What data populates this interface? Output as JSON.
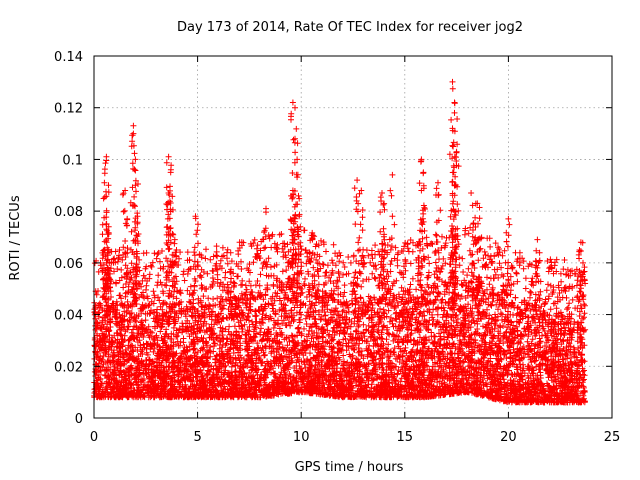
{
  "chart_data": {
    "type": "scatter",
    "title": "Day 173 of 2014, Rate Of TEC Index for receiver jog2",
    "xlabel": "GPS time / hours",
    "ylabel": "ROTI / TECUs",
    "xlim": [
      0,
      25
    ],
    "ylim": [
      0,
      0.14
    ],
    "x_ticks": [
      0,
      5,
      10,
      15,
      20,
      25
    ],
    "y_ticks": [
      0,
      0.02,
      0.04,
      0.06,
      0.08,
      0.1,
      0.12,
      0.14
    ],
    "x_tick_labels": [
      "0",
      "5",
      "10",
      "15",
      "20",
      "25"
    ],
    "y_tick_labels": [
      "0",
      "0.02",
      "0.04",
      "0.06",
      "0.08",
      "0.1",
      "0.12",
      "0.14"
    ],
    "grid": true,
    "marker": "+",
    "color": "#ff0000",
    "series": [
      {
        "name": "ROTI",
        "description": "dense cloud of points from 0 to 23.7 h, bulk 0.008–0.05 TECUs",
        "baseline_band": [
          [
            0,
            0.008,
            0.045
          ],
          [
            5,
            0.008,
            0.045
          ],
          [
            8,
            0.008,
            0.05
          ],
          [
            10,
            0.01,
            0.055
          ],
          [
            12,
            0.008,
            0.045
          ],
          [
            16,
            0.008,
            0.05
          ],
          [
            18,
            0.01,
            0.055
          ],
          [
            20,
            0.006,
            0.045
          ],
          [
            23.7,
            0.006,
            0.04
          ]
        ],
        "peaks": [
          {
            "x": 0.6,
            "y": 0.101
          },
          {
            "x": 0.5,
            "y": 0.091
          },
          {
            "x": 0.7,
            "y": 0.09
          },
          {
            "x": 0.6,
            "y": 0.073
          },
          {
            "x": 0.6,
            "y": 0.06
          },
          {
            "x": 1.5,
            "y": 0.088
          },
          {
            "x": 1.6,
            "y": 0.077
          },
          {
            "x": 1.9,
            "y": 0.113
          },
          {
            "x": 1.9,
            "y": 0.11
          },
          {
            "x": 2.0,
            "y": 0.1
          },
          {
            "x": 2.0,
            "y": 0.09
          },
          {
            "x": 2.1,
            "y": 0.078
          },
          {
            "x": 3.6,
            "y": 0.101
          },
          {
            "x": 3.7,
            "y": 0.095
          },
          {
            "x": 3.6,
            "y": 0.087
          },
          {
            "x": 3.9,
            "y": 0.069
          },
          {
            "x": 4.9,
            "y": 0.078
          },
          {
            "x": 8.3,
            "y": 0.081
          },
          {
            "x": 9.6,
            "y": 0.122
          },
          {
            "x": 9.7,
            "y": 0.12
          },
          {
            "x": 9.7,
            "y": 0.108
          },
          {
            "x": 9.8,
            "y": 0.1
          },
          {
            "x": 9.6,
            "y": 0.088
          },
          {
            "x": 9.9,
            "y": 0.078
          },
          {
            "x": 9.5,
            "y": 0.065
          },
          {
            "x": 12.7,
            "y": 0.092
          },
          {
            "x": 12.9,
            "y": 0.088
          },
          {
            "x": 13.9,
            "y": 0.087
          },
          {
            "x": 14.0,
            "y": 0.071
          },
          {
            "x": 14.4,
            "y": 0.094
          },
          {
            "x": 15.8,
            "y": 0.1
          },
          {
            "x": 15.9,
            "y": 0.095
          },
          {
            "x": 15.8,
            "y": 0.088
          },
          {
            "x": 16.6,
            "y": 0.091
          },
          {
            "x": 17.3,
            "y": 0.13
          },
          {
            "x": 17.4,
            "y": 0.122
          },
          {
            "x": 17.4,
            "y": 0.118
          },
          {
            "x": 17.3,
            "y": 0.112
          },
          {
            "x": 17.5,
            "y": 0.103
          },
          {
            "x": 17.4,
            "y": 0.09
          },
          {
            "x": 18.2,
            "y": 0.087
          },
          {
            "x": 18.5,
            "y": 0.083
          },
          {
            "x": 18.3,
            "y": 0.075
          },
          {
            "x": 18.6,
            "y": 0.065
          },
          {
            "x": 20.0,
            "y": 0.077
          },
          {
            "x": 21.4,
            "y": 0.069
          },
          {
            "x": 23.5,
            "y": 0.068
          },
          {
            "x": 23.6,
            "y": 0.06
          }
        ]
      }
    ]
  }
}
